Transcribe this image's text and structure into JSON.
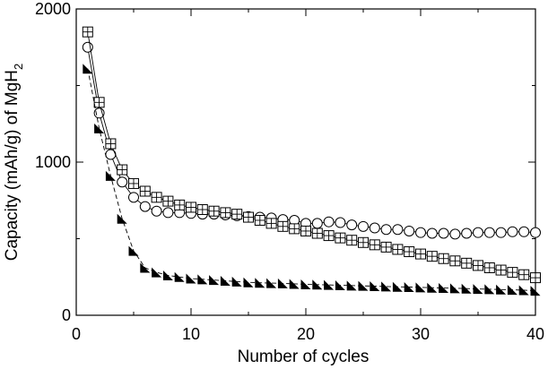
{
  "chart_data": {
    "type": "scatter",
    "title": "",
    "xlabel": "Number of cycles",
    "ylabel": "Capacity (mAh/g) of MgH",
    "ylabel_subscript": "2",
    "xlim": [
      0,
      40
    ],
    "ylim": [
      0,
      2000
    ],
    "x_ticks": [
      0,
      10,
      20,
      30,
      40
    ],
    "y_ticks": [
      0,
      1000,
      2000
    ],
    "x_tick_labels": [
      "0",
      "10",
      "20",
      "30",
      "40"
    ],
    "y_tick_labels": [
      "0",
      "1000",
      "2000"
    ],
    "grid": false,
    "legend": "none",
    "series": [
      {
        "name": "open circles",
        "marker": "circle-open",
        "line": "solid",
        "x": [
          1,
          2,
          3,
          4,
          5,
          6,
          7,
          8,
          9,
          10,
          11,
          12,
          13,
          14,
          15,
          16,
          17,
          18,
          19,
          20,
          21,
          22,
          23,
          24,
          25,
          26,
          27,
          28,
          29,
          30,
          31,
          32,
          33,
          34,
          35,
          36,
          37,
          38,
          39,
          40
        ],
        "values": [
          1750,
          1320,
          1050,
          870,
          770,
          710,
          680,
          670,
          670,
          665,
          660,
          660,
          655,
          650,
          645,
          640,
          635,
          625,
          620,
          600,
          600,
          610,
          605,
          590,
          580,
          570,
          560,
          560,
          550,
          540,
          535,
          535,
          530,
          535,
          540,
          540,
          540,
          545,
          545,
          540
        ]
      },
      {
        "name": "boxed squares",
        "marker": "square-cross",
        "line": "solid",
        "x": [
          1,
          2,
          3,
          4,
          5,
          6,
          7,
          8,
          9,
          10,
          11,
          12,
          13,
          14,
          15,
          16,
          17,
          18,
          19,
          20,
          21,
          22,
          23,
          24,
          25,
          26,
          27,
          28,
          29,
          30,
          31,
          32,
          33,
          34,
          35,
          36,
          37,
          38,
          39,
          40
        ],
        "values": [
          1850,
          1390,
          1120,
          950,
          860,
          810,
          770,
          745,
          720,
          705,
          690,
          680,
          670,
          660,
          640,
          620,
          600,
          580,
          565,
          550,
          535,
          520,
          505,
          490,
          475,
          460,
          445,
          430,
          415,
          400,
          385,
          370,
          355,
          340,
          325,
          310,
          295,
          280,
          265,
          245
        ]
      },
      {
        "name": "filled triangles",
        "marker": "triangle-filled",
        "line": "dashed",
        "x": [
          1,
          2,
          3,
          4,
          5,
          6,
          7,
          8,
          9,
          10,
          11,
          12,
          13,
          14,
          15,
          16,
          17,
          18,
          19,
          20,
          21,
          22,
          23,
          24,
          25,
          26,
          27,
          28,
          29,
          30,
          31,
          32,
          33,
          34,
          35,
          36,
          37,
          38,
          39,
          40
        ],
        "values": [
          1610,
          1220,
          910,
          630,
          420,
          310,
          280,
          260,
          250,
          240,
          235,
          230,
          225,
          220,
          215,
          212,
          210,
          208,
          205,
          202,
          200,
          198,
          196,
          194,
          192,
          190,
          188,
          186,
          184,
          182,
          180,
          178,
          176,
          174,
          172,
          170,
          168,
          166,
          164,
          160
        ]
      }
    ]
  }
}
